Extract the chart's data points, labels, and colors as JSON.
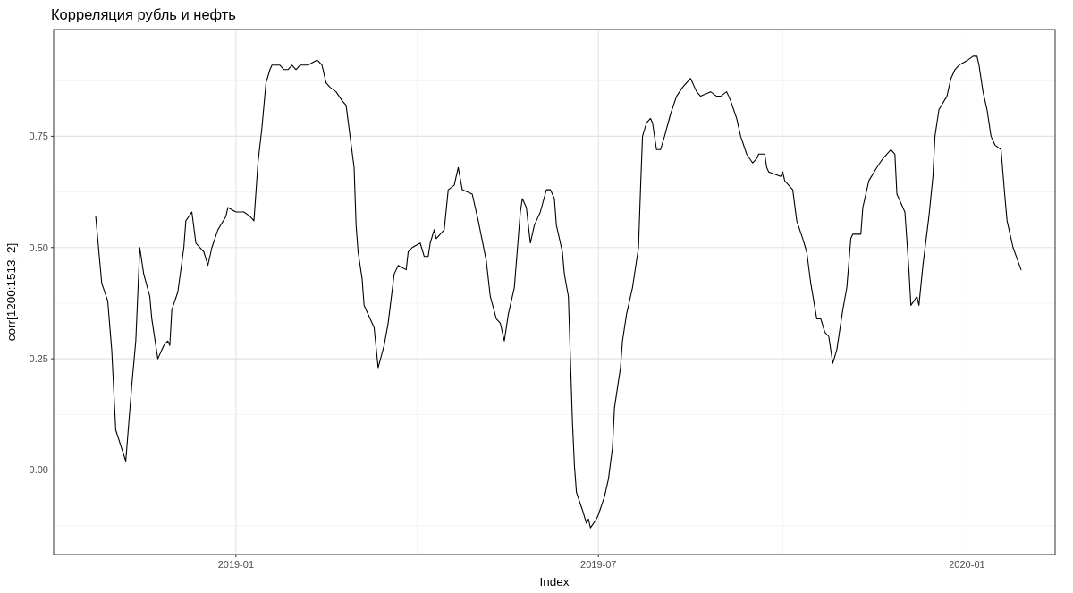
{
  "chart_data": {
    "type": "line",
    "title": "Корреляция рубль и нефть",
    "xlabel": "Index",
    "ylabel": "corr[1200:1513, 2]",
    "grid": true,
    "xlim": [
      "2018-10-02",
      "2020-02-14"
    ],
    "ylim": [
      -0.19,
      0.99
    ],
    "xticks": [
      {
        "value": "2019-01-01",
        "label": "2019-01"
      },
      {
        "value": "2019-07-01",
        "label": "2019-07"
      },
      {
        "value": "2020-01-01",
        "label": "2020-01"
      }
    ],
    "yticks": [
      {
        "value": 0,
        "label": "0.00"
      },
      {
        "value": 0.25,
        "label": "0.25"
      },
      {
        "value": 0.5,
        "label": "0.50"
      },
      {
        "value": 0.75,
        "label": "0.75"
      }
    ],
    "series": [
      {
        "color": "#000000",
        "x": [
          "2018-10-23",
          "2018-10-26",
          "2018-10-29",
          "2018-10-31",
          "2018-11-02",
          "2018-11-07",
          "2018-11-10",
          "2018-11-12",
          "2018-11-14",
          "2018-11-16",
          "2018-11-19",
          "2018-11-20",
          "2018-11-23",
          "2018-11-26",
          "2018-11-28",
          "2018-11-29",
          "2018-11-30",
          "2018-12-03",
          "2018-12-06",
          "2018-12-07",
          "2018-12-10",
          "2018-12-12",
          "2018-12-16",
          "2018-12-18",
          "2018-12-20",
          "2018-12-23",
          "2018-12-27",
          "2018-12-28",
          "2019-01-01",
          "2019-01-05",
          "2019-01-08",
          "2019-01-10",
          "2019-01-12",
          "2019-01-14",
          "2019-01-16",
          "2019-01-18",
          "2019-01-19",
          "2019-01-23",
          "2019-01-25",
          "2019-01-27",
          "2019-01-29",
          "2019-01-31",
          "2019-02-02",
          "2019-02-06",
          "2019-02-10",
          "2019-02-11",
          "2019-02-13",
          "2019-02-15",
          "2019-02-17",
          "2019-02-20",
          "2019-02-23",
          "2019-02-25",
          "2019-02-27",
          "2019-03-01",
          "2019-03-02",
          "2019-03-03",
          "2019-03-05",
          "2019-03-06",
          "2019-03-09",
          "2019-03-11",
          "2019-03-13",
          "2019-03-16",
          "2019-03-18",
          "2019-03-21",
          "2019-03-23",
          "2019-03-27",
          "2019-03-28",
          "2019-03-30",
          "2019-04-03",
          "2019-04-05",
          "2019-04-07",
          "2019-04-08",
          "2019-04-10",
          "2019-04-11",
          "2019-04-15",
          "2019-04-17",
          "2019-04-20",
          "2019-04-22",
          "2019-04-24",
          "2019-04-29",
          "2019-05-02",
          "2019-05-06",
          "2019-05-08",
          "2019-05-11",
          "2019-05-13",
          "2019-05-15",
          "2019-05-17",
          "2019-05-20",
          "2019-05-23",
          "2019-05-24",
          "2019-05-26",
          "2019-05-28",
          "2019-05-30",
          "2019-06-02",
          "2019-06-05",
          "2019-06-07",
          "2019-06-09",
          "2019-06-10",
          "2019-06-13",
          "2019-06-14",
          "2019-06-16",
          "2019-06-17",
          "2019-06-18",
          "2019-06-19",
          "2019-06-20",
          "2019-06-23",
          "2019-06-25",
          "2019-06-26",
          "2019-06-27",
          "2019-06-30",
          "2019-07-01",
          "2019-07-04",
          "2019-07-06",
          "2019-07-08",
          "2019-07-09",
          "2019-07-12",
          "2019-07-13",
          "2019-07-15",
          "2019-07-18",
          "2019-07-21",
          "2019-07-22",
          "2019-07-23",
          "2019-07-25",
          "2019-07-27",
          "2019-07-28",
          "2019-07-30",
          "2019-08-01",
          "2019-08-03",
          "2019-08-06",
          "2019-08-09",
          "2019-08-12",
          "2019-08-16",
          "2019-08-19",
          "2019-08-21",
          "2019-08-26",
          "2019-08-29",
          "2019-08-31",
          "2019-09-03",
          "2019-09-05",
          "2019-09-08",
          "2019-09-10",
          "2019-09-13",
          "2019-09-16",
          "2019-09-18",
          "2019-09-19",
          "2019-09-22",
          "2019-09-23",
          "2019-09-24",
          "2019-09-30",
          "2019-10-01",
          "2019-10-02",
          "2019-10-06",
          "2019-10-08",
          "2019-10-11",
          "2019-10-13",
          "2019-10-15",
          "2019-10-18",
          "2019-10-20",
          "2019-10-22",
          "2019-10-24",
          "2019-10-26",
          "2019-10-28",
          "2019-10-31",
          "2019-11-02",
          "2019-11-04",
          "2019-11-05",
          "2019-11-09",
          "2019-11-10",
          "2019-11-13",
          "2019-11-17",
          "2019-11-20",
          "2019-11-24",
          "2019-11-26",
          "2019-11-27",
          "2019-12-01",
          "2019-12-03",
          "2019-12-04",
          "2019-12-07",
          "2019-12-08",
          "2019-12-10",
          "2019-12-13",
          "2019-12-15",
          "2019-12-16",
          "2019-12-18",
          "2019-12-22",
          "2019-12-24",
          "2019-12-26",
          "2019-12-28",
          "2020-01-01",
          "2020-01-04",
          "2020-01-06",
          "2020-01-07",
          "2020-01-09",
          "2020-01-11",
          "2020-01-13",
          "2020-01-15",
          "2020-01-18",
          "2020-01-20",
          "2020-01-21",
          "2020-01-24",
          "2020-01-28"
        ],
        "values": [
          0.57,
          0.42,
          0.38,
          0.27,
          0.09,
          0.02,
          0.19,
          0.29,
          0.5,
          0.44,
          0.39,
          0.34,
          0.25,
          0.28,
          0.29,
          0.28,
          0.36,
          0.4,
          0.5,
          0.56,
          0.58,
          0.51,
          0.49,
          0.46,
          0.5,
          0.54,
          0.57,
          0.59,
          0.58,
          0.58,
          0.57,
          0.56,
          0.69,
          0.77,
          0.87,
          0.9,
          0.91,
          0.91,
          0.9,
          0.9,
          0.91,
          0.9,
          0.91,
          0.91,
          0.92,
          0.92,
          0.91,
          0.87,
          0.86,
          0.85,
          0.83,
          0.82,
          0.75,
          0.68,
          0.55,
          0.49,
          0.43,
          0.37,
          0.34,
          0.32,
          0.23,
          0.28,
          0.33,
          0.44,
          0.46,
          0.45,
          0.49,
          0.5,
          0.51,
          0.48,
          0.48,
          0.51,
          0.54,
          0.52,
          0.54,
          0.63,
          0.64,
          0.68,
          0.63,
          0.62,
          0.56,
          0.47,
          0.39,
          0.34,
          0.33,
          0.29,
          0.35,
          0.41,
          0.58,
          0.61,
          0.59,
          0.51,
          0.55,
          0.58,
          0.63,
          0.63,
          0.61,
          0.55,
          0.49,
          0.44,
          0.39,
          0.25,
          0.11,
          0.01,
          -0.05,
          -0.09,
          -0.12,
          -0.11,
          -0.13,
          -0.11,
          -0.1,
          -0.06,
          -0.02,
          0.05,
          0.14,
          0.23,
          0.29,
          0.35,
          0.41,
          0.5,
          0.63,
          0.75,
          0.78,
          0.79,
          0.78,
          0.72,
          0.72,
          0.75,
          0.8,
          0.84,
          0.86,
          0.88,
          0.85,
          0.84,
          0.85,
          0.84,
          0.84,
          0.85,
          0.83,
          0.79,
          0.75,
          0.71,
          0.69,
          0.7,
          0.71,
          0.71,
          0.68,
          0.67,
          0.66,
          0.67,
          0.65,
          0.63,
          0.56,
          0.52,
          0.49,
          0.42,
          0.34,
          0.34,
          0.31,
          0.3,
          0.24,
          0.27,
          0.36,
          0.41,
          0.52,
          0.53,
          0.53,
          0.59,
          0.65,
          0.68,
          0.7,
          0.72,
          0.71,
          0.62,
          0.58,
          0.45,
          0.37,
          0.39,
          0.37,
          0.46,
          0.57,
          0.66,
          0.75,
          0.81,
          0.84,
          0.88,
          0.9,
          0.91,
          0.92,
          0.93,
          0.93,
          0.91,
          0.85,
          0.81,
          0.75,
          0.73,
          0.72,
          0.61,
          0.56,
          0.5,
          0.45
        ]
      }
    ]
  }
}
